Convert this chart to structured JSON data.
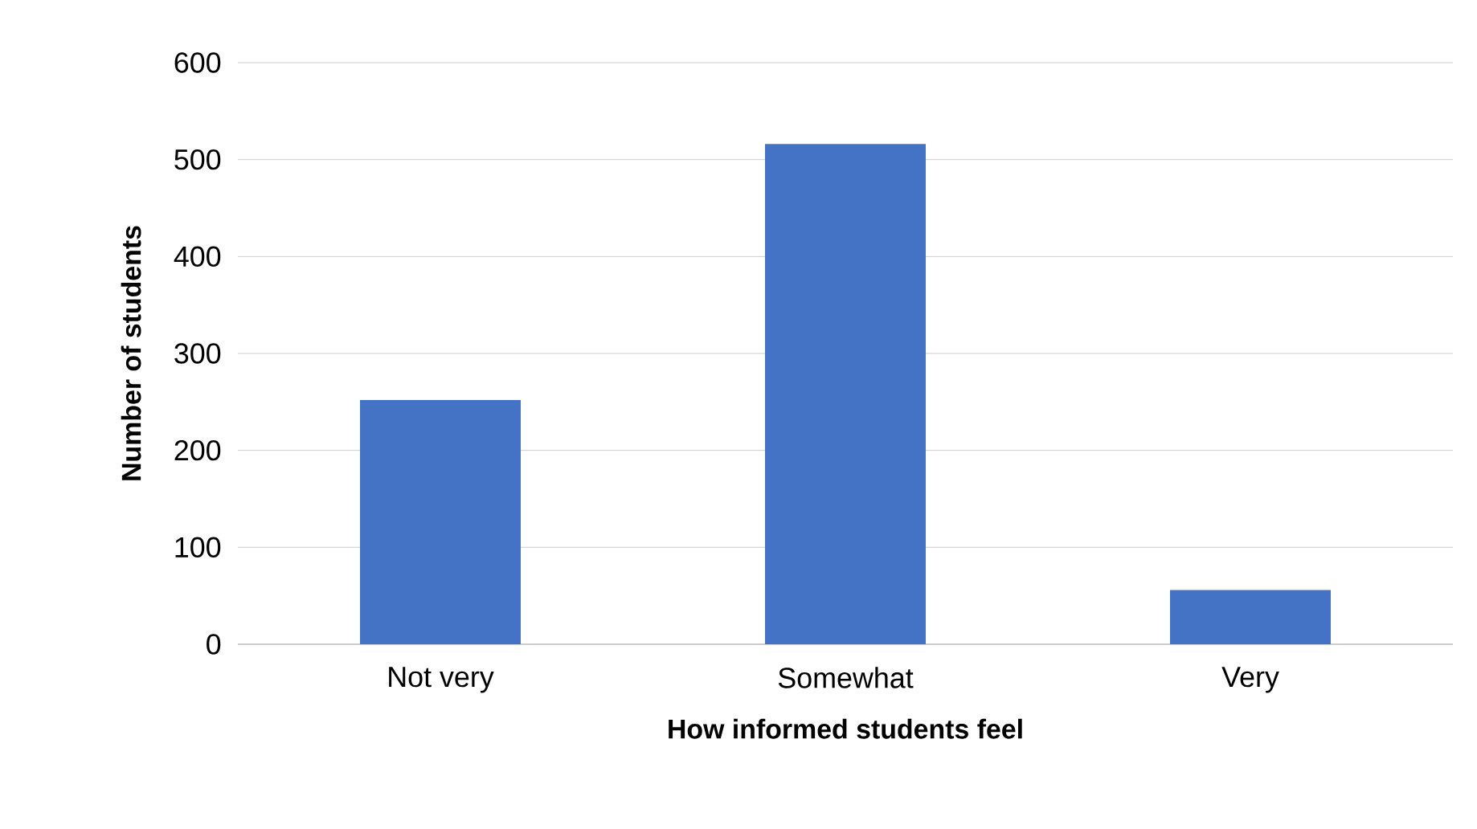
{
  "chart_data": {
    "type": "bar",
    "xlabel": "How informed students feel",
    "ylabel": "Number of students",
    "categories": [
      "Not very",
      "Somewhat",
      "Very"
    ],
    "values": [
      252,
      516,
      56
    ],
    "color": "#4472c4",
    "ylim": [
      0,
      600
    ],
    "yticks": [
      0,
      100,
      200,
      300,
      400,
      500,
      600
    ],
    "grid": "y"
  }
}
